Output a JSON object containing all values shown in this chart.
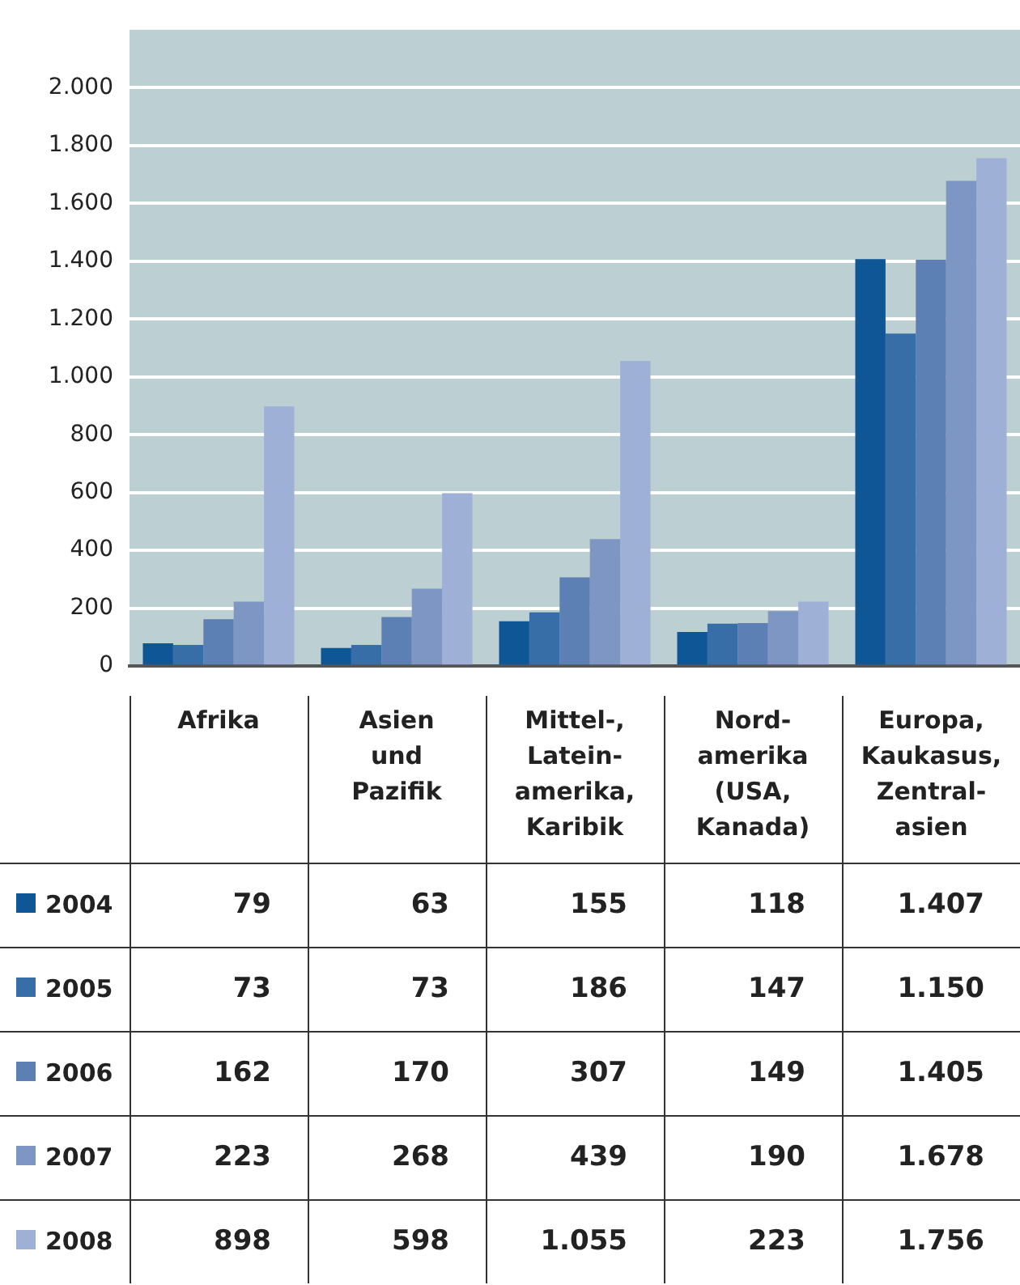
{
  "chart_data": {
    "type": "bar",
    "categories": [
      "Afrika",
      "Asien und Pazifik",
      "Mittel-, Latein-amerika, Karibik",
      "Nord-amerika (USA, Kanada)",
      "Europa, Kaukasus, Zentral-asien"
    ],
    "series": [
      {
        "name": "2004",
        "color": "#0e5696",
        "values": [
          79,
          63,
          155,
          118,
          1407
        ],
        "value_labels": [
          "79",
          "63",
          "155",
          "118",
          "1.407"
        ]
      },
      {
        "name": "2005",
        "color": "#376ea7",
        "values": [
          73,
          73,
          186,
          147,
          1150
        ],
        "value_labels": [
          "73",
          "73",
          "186",
          "147",
          "1.150"
        ]
      },
      {
        "name": "2006",
        "color": "#5c7fb4",
        "values": [
          162,
          170,
          307,
          149,
          1405
        ],
        "value_labels": [
          "162",
          "170",
          "307",
          "149",
          "1.405"
        ]
      },
      {
        "name": "2007",
        "color": "#7d96c3",
        "values": [
          223,
          268,
          439,
          190,
          1678
        ],
        "value_labels": [
          "223",
          "268",
          "439",
          "190",
          "1.678"
        ]
      },
      {
        "name": "2008",
        "color": "#9eb0d6",
        "values": [
          898,
          598,
          1055,
          223,
          1756
        ],
        "value_labels": [
          "898",
          "598",
          "1.055",
          "223",
          "1.756"
        ]
      }
    ],
    "ylim": [
      0,
      2200
    ],
    "yticks": [
      0,
      200,
      400,
      600,
      800,
      {
        "value": 1000,
        "label": "1.000"
      },
      {
        "value": 1200,
        "label": "1.200"
      },
      {
        "value": 1400,
        "label": "1.400"
      },
      {
        "value": 1600,
        "label": "1.600"
      },
      {
        "value": 1800,
        "label": "1.800"
      },
      {
        "value": 2000,
        "label": "2.000"
      }
    ],
    "grid": "y",
    "legend": "bottom left",
    "tick_labels": "y"
  }
}
